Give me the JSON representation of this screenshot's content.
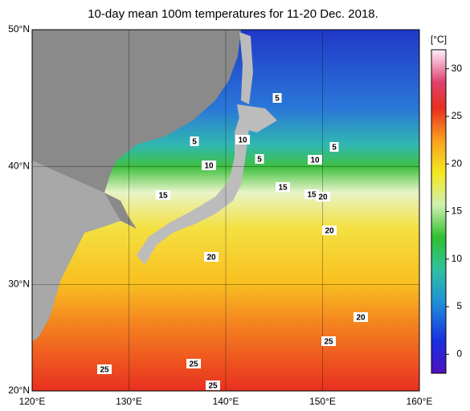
{
  "title": "10-day mean 100m temperatures for 11-20 Dec. 2018.",
  "lon_ticks": [
    {
      "value": 120,
      "label": "120°E"
    },
    {
      "value": 130,
      "label": "130°E"
    },
    {
      "value": 140,
      "label": "140°E"
    },
    {
      "value": 150,
      "label": "150°E"
    },
    {
      "value": 160,
      "label": "160°E"
    }
  ],
  "lat_ticks": [
    {
      "value": 20,
      "label": "20°N"
    },
    {
      "value": 30,
      "label": "30°N"
    },
    {
      "value": 40,
      "label": "40°N"
    },
    {
      "value": 50,
      "label": "50°N"
    }
  ],
  "lonlim": [
    120,
    160
  ],
  "latlim": [
    20,
    50
  ],
  "colorbar": {
    "unit": "[°C]",
    "lim": [
      -2,
      32
    ],
    "ticks": [
      0,
      5,
      10,
      15,
      20,
      25,
      30
    ]
  },
  "contour_labels": [
    "5",
    "5",
    "10",
    "5",
    "10",
    "5",
    "10",
    "15",
    "15",
    "15",
    "20",
    "20",
    "20",
    "20",
    "25",
    "25",
    "25",
    "25"
  ]
}
